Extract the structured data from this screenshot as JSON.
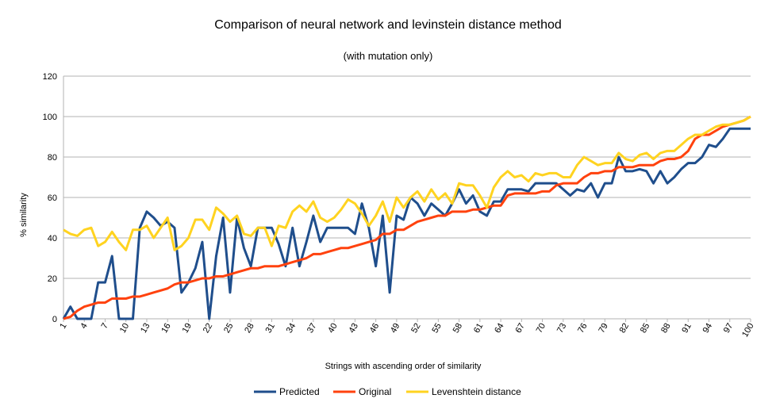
{
  "chart_data": {
    "type": "line",
    "title": "Comparison of neural network and levinstein distance method",
    "subtitle": "(with mutation only)",
    "xlabel": "Strings with ascending order of similarity",
    "ylabel": "% similarity",
    "ylim": [
      0,
      120
    ],
    "yticks": [
      0,
      20,
      40,
      60,
      80,
      100,
      120
    ],
    "x": [
      1,
      2,
      3,
      4,
      5,
      6,
      7,
      8,
      9,
      10,
      11,
      12,
      13,
      14,
      15,
      16,
      17,
      18,
      19,
      20,
      21,
      22,
      23,
      24,
      25,
      26,
      27,
      28,
      29,
      30,
      31,
      32,
      33,
      34,
      35,
      36,
      37,
      38,
      39,
      40,
      41,
      42,
      43,
      44,
      45,
      46,
      47,
      48,
      49,
      50,
      51,
      52,
      53,
      54,
      55,
      56,
      57,
      58,
      59,
      60,
      61,
      62,
      63,
      64,
      65,
      66,
      67,
      68,
      69,
      70,
      71,
      72,
      73,
      74,
      75,
      76,
      77,
      78,
      79,
      80,
      81,
      82,
      83,
      84,
      85,
      86,
      87,
      88,
      89,
      90,
      91,
      92,
      93,
      94,
      95,
      96,
      97,
      98,
      99,
      100
    ],
    "xtick_labels": [
      1,
      4,
      7,
      10,
      13,
      16,
      19,
      22,
      25,
      28,
      31,
      34,
      37,
      40,
      43,
      46,
      49,
      52,
      55,
      58,
      61,
      64,
      67,
      70,
      73,
      76,
      79,
      82,
      85,
      88,
      91,
      94,
      97,
      100
    ],
    "grid": "horizontal",
    "legend_position": "bottom",
    "series": [
      {
        "name": "Predicted",
        "color": "#1f4e8c",
        "values": [
          0,
          6,
          0,
          0,
          0,
          18,
          18,
          31,
          0,
          0,
          0,
          45,
          53,
          50,
          46,
          48,
          45,
          13,
          18,
          25,
          38,
          0,
          31,
          50,
          13,
          50,
          35,
          26,
          45,
          45,
          45,
          37,
          26,
          45,
          26,
          38,
          51,
          38,
          45,
          45,
          45,
          45,
          42,
          57,
          45,
          26,
          51,
          13,
          51,
          49,
          60,
          57,
          51,
          57,
          54,
          51,
          57,
          64,
          57,
          61,
          53,
          51,
          58,
          58,
          64,
          64,
          64,
          63,
          67,
          67,
          67,
          67,
          64,
          61,
          64,
          63,
          67,
          60,
          67,
          67,
          80,
          73,
          73,
          74,
          73,
          67,
          73,
          67,
          70,
          74,
          77,
          77,
          80,
          86,
          85,
          89,
          94,
          94,
          94,
          94
        ]
      },
      {
        "name": "Original",
        "color": "#ff420e",
        "values": [
          0,
          1,
          4,
          6,
          7,
          8,
          8,
          10,
          10,
          10,
          11,
          11,
          12,
          13,
          14,
          15,
          17,
          18,
          18,
          19,
          20,
          20,
          21,
          21,
          22,
          23,
          24,
          25,
          25,
          26,
          26,
          26,
          27,
          28,
          29,
          30,
          32,
          32,
          33,
          34,
          35,
          35,
          36,
          37,
          38,
          39,
          42,
          42,
          44,
          44,
          46,
          48,
          49,
          50,
          51,
          51,
          53,
          53,
          53,
          54,
          54,
          55,
          56,
          56,
          61,
          62,
          62,
          62,
          62,
          63,
          63,
          66,
          67,
          67,
          67,
          70,
          72,
          72,
          73,
          73,
          75,
          75,
          75,
          76,
          76,
          76,
          78,
          79,
          79,
          80,
          83,
          89,
          91,
          91,
          93,
          95,
          96,
          97,
          98,
          100
        ]
      },
      {
        "name": "Levenshtein distance",
        "color": "#ffd320",
        "values": [
          44,
          42,
          41,
          44,
          45,
          36,
          38,
          43,
          38,
          34,
          44,
          44,
          46,
          40,
          45,
          50,
          34,
          36,
          40,
          49,
          49,
          44,
          55,
          52,
          48,
          51,
          42,
          41,
          45,
          45,
          36,
          46,
          45,
          53,
          56,
          53,
          58,
          50,
          48,
          50,
          54,
          59,
          57,
          52,
          46,
          51,
          58,
          48,
          60,
          55,
          60,
          63,
          58,
          64,
          59,
          62,
          57,
          67,
          66,
          66,
          61,
          55,
          65,
          70,
          73,
          70,
          71,
          68,
          72,
          71,
          72,
          72,
          70,
          70,
          76,
          80,
          78,
          76,
          77,
          77,
          82,
          79,
          78,
          81,
          82,
          79,
          82,
          83,
          83,
          86,
          89,
          91,
          91,
          93,
          95,
          96,
          96,
          97,
          98,
          100
        ]
      }
    ]
  }
}
